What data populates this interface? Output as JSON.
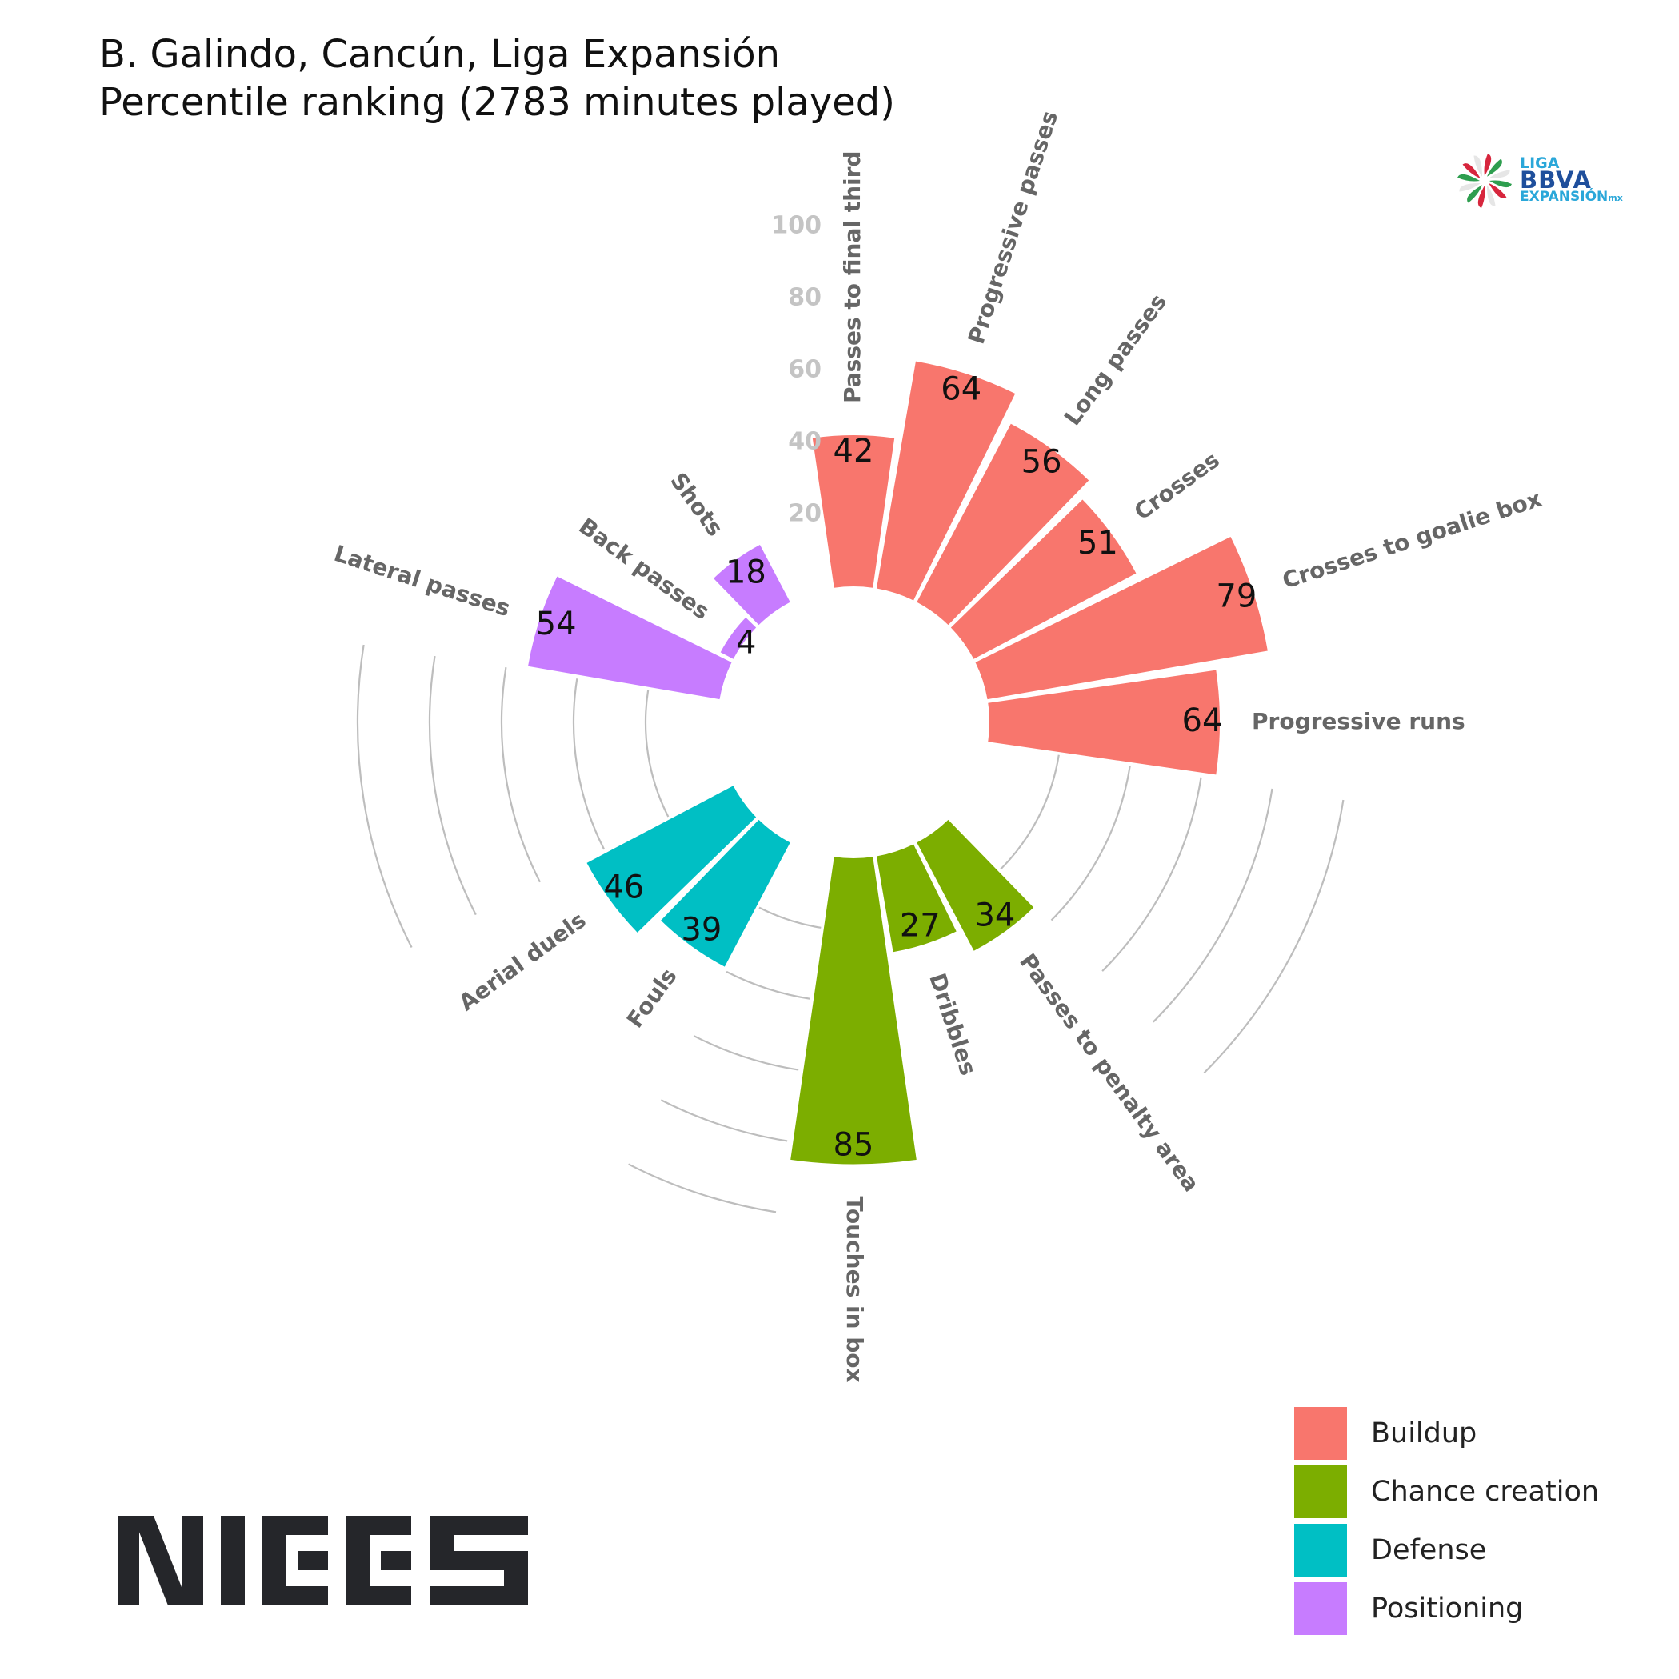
{
  "title": "B. Galindo, Cancún, Liga Expansión",
  "subtitle": "Percentile ranking (2783 minutes played)",
  "chart_data": {
    "type": "bar",
    "layout": "polar",
    "title": "B. Galindo, Cancún, Liga Expansión",
    "subtitle": "Percentile ranking (2783 minutes played)",
    "ylim": [
      0,
      100
    ],
    "radial_ticks": [
      "20",
      "40",
      "60",
      "80",
      "100"
    ],
    "categories": [
      "Passes to final third",
      "Progressive passes",
      "Long passes",
      "Crosses",
      "Crosses to goalie box",
      "Progressive runs",
      "Passes to penalty area",
      "Dribbles",
      "Touches in box",
      "Fouls",
      "Aerial duels",
      "Lateral passes",
      "Back passes",
      "Shots"
    ],
    "values": [
      42,
      64,
      56,
      51,
      79,
      64,
      34,
      27,
      85,
      39,
      46,
      54,
      4,
      18
    ],
    "groups": [
      "Buildup",
      "Buildup",
      "Buildup",
      "Buildup",
      "Buildup",
      "Buildup",
      "Chance creation",
      "Chance creation",
      "Chance creation",
      "Defense",
      "Defense",
      "Positioning",
      "Positioning",
      "Positioning"
    ],
    "legend": {
      "position": "bottom-right",
      "items": [
        {
          "name": "Buildup",
          "color": "#F8766D"
        },
        {
          "name": "Chance creation",
          "color": "#7CAE00"
        },
        {
          "name": "Defense",
          "color": "#00BFC4"
        },
        {
          "name": "Positioning",
          "color": "#C77CFF"
        }
      ]
    },
    "grid": "partial arcs in empty sectors"
  },
  "league_logo": {
    "line1": "LIGA",
    "line2": "BBVA",
    "line3": "EXPANSIÓN",
    "suffix": "mx"
  },
  "brand_logo": "NIEES"
}
